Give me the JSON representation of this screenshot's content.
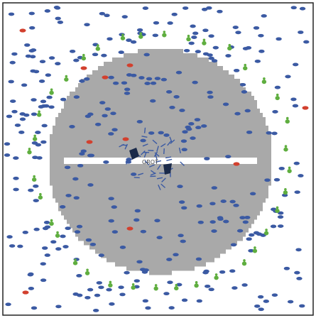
{
  "scene": {
    "center_label": "GROT",
    "arena": {
      "background": "#ffffff",
      "frame": "#222222",
      "disc_color": "#a9a9a9",
      "bar_color": "#ffffff"
    },
    "colors": {
      "blue_agent": "#3b5aa3",
      "green_agent": "#5fae3f",
      "red_agent": "#d2402e",
      "dark_unit": "#1a2a4a"
    }
  }
}
